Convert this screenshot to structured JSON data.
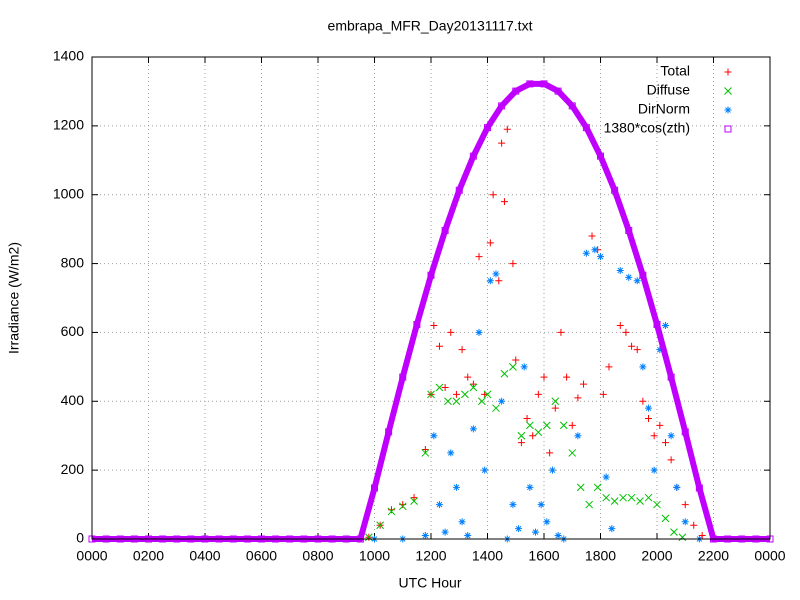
{
  "chart_data": {
    "type": "scatter",
    "title": "embrapa_MFR_Day20131117.txt",
    "xlabel": "UTC Hour",
    "ylabel": "Irradiance (W/m2)",
    "xlim": [
      0,
      24
    ],
    "ylim": [
      0,
      1400
    ],
    "xticks": [
      {
        "value": 0,
        "label": "0000"
      },
      {
        "value": 2,
        "label": "0200"
      },
      {
        "value": 4,
        "label": "0400"
      },
      {
        "value": 6,
        "label": "0600"
      },
      {
        "value": 8,
        "label": "0800"
      },
      {
        "value": 10,
        "label": "1000"
      },
      {
        "value": 12,
        "label": "1200"
      },
      {
        "value": 14,
        "label": "1400"
      },
      {
        "value": 16,
        "label": "1600"
      },
      {
        "value": 18,
        "label": "1800"
      },
      {
        "value": 20,
        "label": "2000"
      },
      {
        "value": 22,
        "label": "2200"
      },
      {
        "value": 24,
        "label": "0000"
      }
    ],
    "yticks": [
      0,
      200,
      400,
      600,
      800,
      1000,
      1200,
      1400
    ],
    "grid": true,
    "legend": "top-right",
    "series": [
      {
        "name": "Total",
        "color": "#ff0000",
        "marker": "plus",
        "x": [
          9.8,
          10.2,
          10.6,
          11,
          11.4,
          11.8,
          12,
          12.1,
          12.3,
          12.5,
          12.7,
          12.9,
          13.1,
          13.3,
          13.5,
          13.7,
          13.9,
          14.1,
          14.2,
          14.4,
          14.5,
          14.6,
          14.7,
          14.9,
          15,
          15.2,
          15.4,
          15.6,
          15.8,
          16,
          16.2,
          16.4,
          16.6,
          16.8,
          17,
          17.2,
          17.4,
          17.7,
          17.9,
          18.1,
          18.3,
          18.7,
          18.9,
          19.1,
          19.3,
          19.5,
          19.7,
          19.9,
          20.1,
          20.3,
          20.5,
          20.7,
          21,
          21.3,
          21.6
        ],
        "values": [
          5,
          40,
          85,
          100,
          120,
          260,
          420,
          620,
          560,
          440,
          600,
          420,
          550,
          470,
          450,
          820,
          420,
          860,
          1000,
          750,
          1150,
          980,
          1190,
          800,
          520,
          280,
          350,
          300,
          420,
          470,
          250,
          380,
          600,
          470,
          330,
          410,
          450,
          880,
          840,
          420,
          500,
          620,
          600,
          560,
          550,
          400,
          350,
          300,
          330,
          280,
          230,
          150,
          100,
          40,
          10
        ]
      },
      {
        "name": "Diffuse",
        "color": "#00c000",
        "marker": "cross",
        "x": [
          9.8,
          10.2,
          10.6,
          11,
          11.4,
          11.8,
          12,
          12.3,
          12.6,
          12.9,
          13.2,
          13.5,
          13.8,
          14,
          14.3,
          14.6,
          14.9,
          15.2,
          15.5,
          15.8,
          16.1,
          16.4,
          16.7,
          17,
          17.3,
          17.6,
          17.9,
          18.2,
          18.5,
          18.8,
          19.1,
          19.4,
          19.7,
          20,
          20.3,
          20.6,
          20.9
        ],
        "values": [
          5,
          40,
          80,
          95,
          110,
          250,
          420,
          440,
          400,
          400,
          420,
          440,
          400,
          420,
          380,
          480,
          500,
          300,
          330,
          310,
          330,
          400,
          330,
          250,
          150,
          100,
          150,
          120,
          110,
          120,
          120,
          110,
          120,
          100,
          60,
          20,
          5
        ]
      },
      {
        "name": "DirNorm",
        "color": "#0080ff",
        "marker": "star",
        "x": [
          10,
          11,
          11.8,
          12.1,
          12.3,
          12.5,
          12.7,
          12.9,
          13.1,
          13.3,
          13.5,
          13.7,
          13.9,
          14.1,
          14.3,
          14.5,
          14.7,
          14.9,
          15.1,
          15.3,
          15.5,
          15.7,
          15.9,
          16.1,
          16.3,
          16.5,
          16.7,
          17.2,
          17.5,
          17.8,
          18,
          18.2,
          18.4,
          18.7,
          19,
          19.3,
          19.5,
          19.7,
          19.9,
          20.1,
          20.3,
          20.5,
          20.7,
          21,
          21.5
        ],
        "values": [
          0,
          0,
          10,
          300,
          100,
          20,
          250,
          150,
          50,
          10,
          320,
          600,
          200,
          750,
          770,
          400,
          0,
          100,
          30,
          500,
          150,
          20,
          100,
          50,
          200,
          10,
          0,
          300,
          830,
          840,
          820,
          180,
          30,
          780,
          760,
          750,
          500,
          380,
          200,
          550,
          620,
          300,
          150,
          50,
          0
        ]
      },
      {
        "name": "1380*cos(zth)",
        "color": "#c000ff",
        "marker": "square",
        "x": [
          0,
          0.5,
          1,
          1.5,
          2,
          2.5,
          3,
          3.5,
          4,
          4.5,
          5,
          5.5,
          6,
          6.5,
          7,
          7.5,
          8,
          8.5,
          9,
          9.5,
          10,
          10.5,
          11,
          11.5,
          12,
          12.5,
          13,
          13.5,
          14,
          14.5,
          15,
          15.5,
          16,
          16.5,
          17,
          17.5,
          18,
          18.5,
          19,
          19.5,
          20,
          20.5,
          21,
          21.5,
          22,
          22.5,
          23,
          23.5,
          24
        ],
        "values": [
          0,
          0,
          0,
          0,
          0,
          0,
          0,
          0,
          0,
          0,
          0,
          0,
          0,
          0,
          0,
          0,
          0,
          0,
          0,
          0,
          148,
          311,
          470,
          623,
          766,
          896,
          1013,
          1112,
          1195,
          1258,
          1301,
          1322,
          1322,
          1301,
          1258,
          1195,
          1112,
          1013,
          896,
          766,
          623,
          470,
          311,
          148,
          0,
          0,
          0,
          0,
          0
        ]
      }
    ]
  }
}
